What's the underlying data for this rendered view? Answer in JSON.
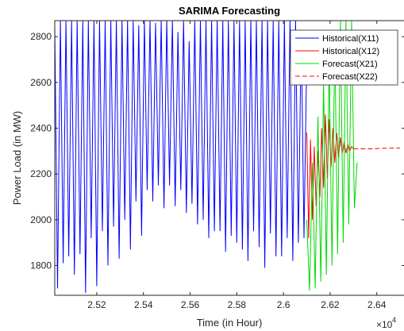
{
  "chart_data": {
    "type": "line",
    "title": "SARIMA Forecasting",
    "xlabel": "Time (in Hour)",
    "ylabel": "Power Load (in MW)",
    "x_exponent_label": "×10",
    "x_exponent_power": "4",
    "xlim": [
      25020,
      26520
    ],
    "ylim": [
      1670,
      2870
    ],
    "xticks": [
      25200,
      25400,
      25600,
      25800,
      26000,
      26200,
      26400
    ],
    "xtick_labels": [
      "2.52",
      "2.54",
      "2.56",
      "2.58",
      "2.6",
      "2.62",
      "2.64"
    ],
    "yticks": [
      1800,
      2000,
      2200,
      2400,
      2600,
      2800
    ],
    "ytick_labels": [
      "1800",
      "2000",
      "2200",
      "2400",
      "2600",
      "2800"
    ],
    "legend_position": "top-right",
    "series": [
      {
        "name": "Historical(X11)",
        "color": "#0000ff",
        "style": "solid",
        "x": [
          25020,
          25032,
          25044,
          25056,
          25068,
          25080,
          25092,
          25104,
          25116,
          25128,
          25140,
          25152,
          25164,
          25176,
          25188,
          25200,
          25212,
          25224,
          25236,
          25248,
          25260,
          25272,
          25284,
          25296,
          25308,
          25320,
          25332,
          25344,
          25356,
          25368,
          25380,
          25392,
          25404,
          25416,
          25428,
          25440,
          25452,
          25464,
          25476,
          25488,
          25500,
          25512,
          25524,
          25536,
          25548,
          25560,
          25572,
          25584,
          25596,
          25608,
          25620,
          25632,
          25644,
          25656,
          25668,
          25680,
          25692,
          25704,
          25716,
          25728,
          25740,
          25752,
          25764,
          25776,
          25788,
          25800,
          25812,
          25824,
          25836,
          25848,
          25860,
          25872,
          25884,
          25896,
          25908,
          25920,
          25932,
          25944,
          25956,
          25968,
          25980,
          25992,
          26004,
          26016,
          26028,
          26040,
          26052,
          26064,
          26076,
          26088,
          26100
        ],
        "y": [
          2850,
          1700,
          2870,
          1810,
          2870,
          1840,
          2870,
          1760,
          2870,
          1850,
          2870,
          1680,
          2870,
          1920,
          2870,
          1710,
          2870,
          1950,
          2870,
          1800,
          2870,
          1970,
          2870,
          1830,
          2870,
          2000,
          2870,
          1870,
          2870,
          2080,
          2850,
          1930,
          2870,
          2130,
          2870,
          2080,
          2860,
          2150,
          2870,
          2050,
          2870,
          2150,
          2870,
          2060,
          2820,
          2130,
          2870,
          2030,
          2780,
          2070,
          2870,
          1980,
          2870,
          2000,
          2870,
          1920,
          2870,
          1950,
          2870,
          1950,
          2870,
          1860,
          2870,
          1930,
          2870,
          1900,
          2870,
          1870,
          2870,
          1820,
          2870,
          1950,
          2870,
          1880,
          2870,
          1790,
          2870,
          1940,
          2870,
          1840,
          2870,
          1840,
          2870,
          1920,
          2870,
          1820,
          2870,
          1900,
          2830,
          1920,
          2720
        ]
      },
      {
        "name": "Historical(X12)",
        "color": "#ff0000",
        "style": "solid",
        "x": [
          26100,
          26108,
          26116,
          26124,
          26132,
          26140,
          26148,
          26156,
          26164,
          26172,
          26180,
          26188,
          26196,
          26204,
          26212,
          26220,
          26228,
          26236,
          26244,
          26252,
          26260,
          26268,
          26276,
          26284,
          26292,
          26300
        ],
        "y": [
          2380,
          1920,
          2350,
          2000,
          2320,
          2060,
          2300,
          2100,
          2400,
          2140,
          2460,
          2180,
          2440,
          2230,
          2400,
          2250,
          2380,
          2270,
          2360,
          2290,
          2340,
          2290,
          2330,
          2300,
          2320,
          2310
        ]
      },
      {
        "name": "Forecast(X21)",
        "color": "#00d800",
        "style": "solid",
        "x": [
          26100,
          26112,
          26124,
          26136,
          26148,
          26160,
          26172,
          26184,
          26196,
          26208,
          26220,
          26232,
          26244,
          26256,
          26268,
          26280,
          26292,
          26304,
          26316
        ],
        "y": [
          2000,
          1690,
          2250,
          1700,
          2450,
          1730,
          2600,
          1760,
          2700,
          1800,
          2800,
          1850,
          2870,
          1900,
          2870,
          1980,
          2870,
          2050,
          2250
        ]
      },
      {
        "name": "Forecast(X22)",
        "color": "#ff0000",
        "style": "dashed",
        "x": [
          26300,
          26340,
          26380,
          26420,
          26460,
          26500
        ],
        "y": [
          2310,
          2310,
          2310,
          2312,
          2313,
          2313
        ]
      }
    ]
  }
}
